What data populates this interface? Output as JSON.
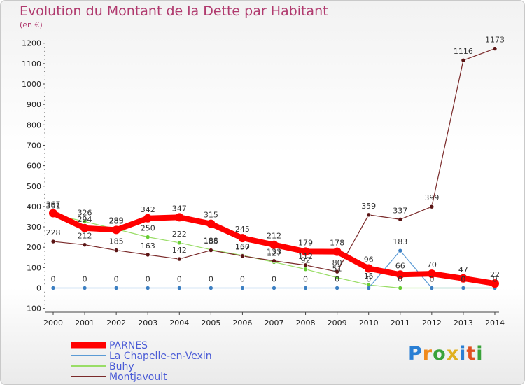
{
  "title": "Evolution du Montant de la Dette par Habitant",
  "unit": "(en €)",
  "logo": "Proxiti",
  "colors": {
    "title": "#b03a6e",
    "parnes": "#ff0000",
    "chapelle": "#5b9bd5",
    "buhy": "#99dd66",
    "montjavoult": "#7a2a2a"
  },
  "chart_data": {
    "type": "line",
    "title": "Evolution du Montant de la Dette par Habitant",
    "ylabel": "(en €)",
    "x": [
      "2000",
      "2001",
      "2002",
      "2003",
      "2004",
      "2005",
      "2006",
      "2007",
      "2008",
      "2009",
      "2010",
      "2011",
      "2012",
      "2013",
      "2014"
    ],
    "ylim": [
      -100,
      1200
    ],
    "yticks": [
      -100,
      0,
      100,
      200,
      300,
      400,
      500,
      600,
      700,
      800,
      900,
      1000,
      1100,
      1200
    ],
    "grid": false,
    "legend_position": "bottom-left",
    "series": [
      {
        "name": "PARNES",
        "color": "#ff0000",
        "values": [
          367,
          294,
          285,
          342,
          347,
          315,
          245,
          212,
          179,
          178,
          96,
          66,
          70,
          47,
          22
        ],
        "labels": [
          "367",
          "294",
          "285",
          "342",
          "347",
          "315",
          "245",
          "212",
          "179",
          "178",
          "96",
          "66",
          "70",
          "47",
          "22"
        ]
      },
      {
        "name": "La Chapelle-en-Vexin",
        "color": "#5b9bd5",
        "values": [
          0,
          0,
          0,
          0,
          0,
          0,
          0,
          0,
          0,
          0,
          0,
          183,
          0,
          0,
          0
        ],
        "labels": [
          "0",
          "0",
          "0",
          "0",
          "0",
          "0",
          "0",
          "0",
          "0",
          "0",
          "0",
          "183",
          "0",
          "0",
          "0"
        ]
      },
      {
        "name": "Buhy",
        "color": "#99dd66",
        "values": [
          361,
          326,
          289,
          250,
          222,
          188,
          160,
          127,
          92,
          51,
          15,
          0,
          0,
          0,
          0
        ],
        "labels": [
          "361",
          "326",
          "289",
          "250",
          "222",
          "188",
          "160",
          "127",
          "92",
          "51",
          "15",
          "0",
          "0",
          "0",
          "0"
        ]
      },
      {
        "name": "Montjavoult",
        "color": "#7a2a2a",
        "values": [
          228,
          212,
          185,
          163,
          142,
          185,
          157,
          133,
          112,
          80,
          359,
          337,
          399,
          1116,
          1173
        ],
        "labels": [
          "228",
          "212",
          "185",
          "163",
          "142",
          "185",
          "157",
          "133",
          "112",
          "80",
          "359",
          "337",
          "399",
          "1116",
          "1173"
        ]
      }
    ]
  }
}
